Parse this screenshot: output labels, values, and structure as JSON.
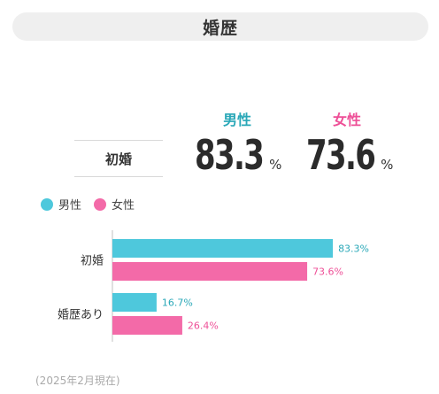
{
  "header": {
    "title": "婚歴"
  },
  "summary": {
    "row_label": "初婚",
    "male": {
      "label": "男性",
      "value": "83.3",
      "unit": "%"
    },
    "female": {
      "label": "女性",
      "value": "73.6",
      "unit": "%"
    }
  },
  "legend": [
    {
      "label": "男性",
      "color": "#4ec8dc"
    },
    {
      "label": "女性",
      "color": "#f36aa8"
    }
  ],
  "colors": {
    "male_bar": "#4ec8dc",
    "female_bar": "#f36aa8",
    "male_text": "#2aa8b8",
    "female_text": "#ee4f97"
  },
  "chart_data": {
    "type": "bar",
    "orientation": "horizontal",
    "categories": [
      "初婚",
      "婚歴あり"
    ],
    "series": [
      {
        "name": "男性",
        "values": [
          83.3,
          16.7
        ]
      },
      {
        "name": "女性",
        "values": [
          73.6,
          26.4
        ]
      }
    ],
    "data_labels": [
      [
        "83.3%",
        "16.7%"
      ],
      [
        "73.6%",
        "26.4%"
      ]
    ],
    "xlim": [
      0,
      100
    ],
    "grid": false,
    "legend_position": "top-left"
  },
  "footnote": "(2025年2月現在)"
}
